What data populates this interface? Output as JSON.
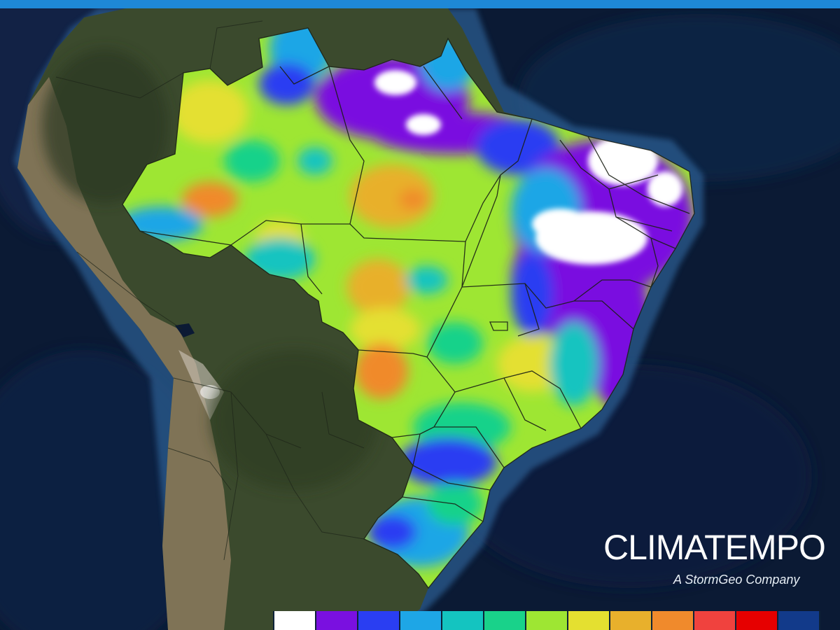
{
  "brand": {
    "name": "CLIMATEMPO",
    "tagline": "A StormGeo Company"
  },
  "colors": {
    "top_bar": "#1e88d6",
    "ocean_deep": "#0b1a34",
    "ocean_shelf": "#2a5c8f",
    "land_forest": "#3d4a2c",
    "land_andes": "#9a8266"
  },
  "legend": {
    "swatches": [
      "#ffffff",
      "#7a10e0",
      "#2a3ef2",
      "#1ea6e6",
      "#14c4c0",
      "#19d28a",
      "#9ee633",
      "#e4e030",
      "#e8b02c",
      "#f08a2c",
      "#f0423e",
      "#e60000",
      "#123a8a"
    ]
  }
}
